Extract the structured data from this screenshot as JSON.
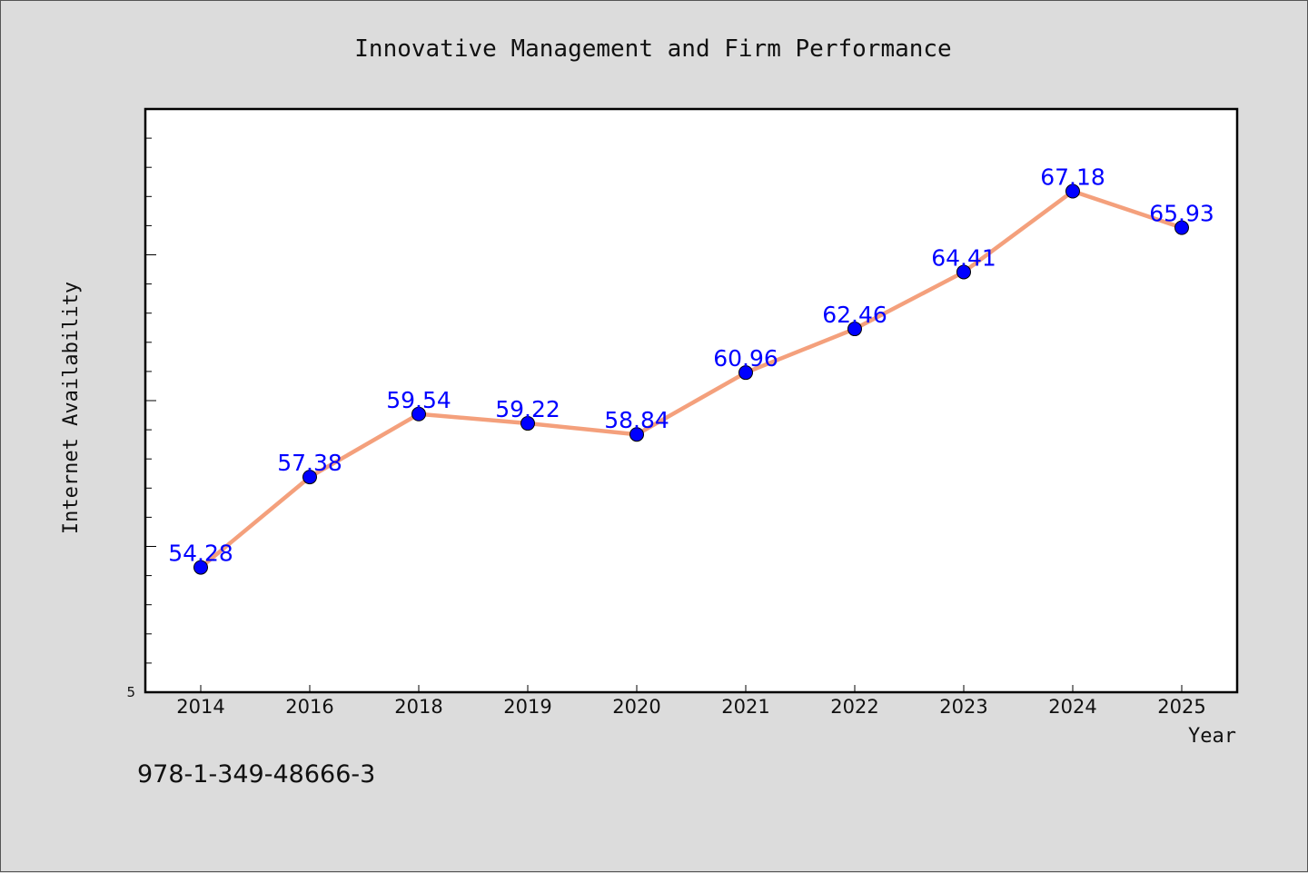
{
  "chart_data": {
    "type": "line",
    "title": "Innovative Management and Firm Performance",
    "xlabel": "Year",
    "ylabel": "Internet Availability",
    "categories": [
      "2014",
      "2016",
      "2018",
      "2019",
      "2020",
      "2021",
      "2022",
      "2023",
      "2024",
      "2025"
    ],
    "series": [
      {
        "values": [
          54.28,
          57.38,
          59.54,
          59.22,
          58.84,
          60.96,
          62.46,
          64.41,
          67.18,
          65.93
        ],
        "line_color": "#f4a07c",
        "marker_color": "#0000ff"
      }
    ],
    "data_labels": [
      "54.28",
      "57.38",
      "59.54",
      "59.22",
      "58.84",
      "60.96",
      "62.46",
      "64.41",
      "67.18",
      "65.93"
    ],
    "ylim": [
      50,
      70
    ],
    "y_tick_labels": [
      "5"
    ],
    "grid": false,
    "plot_background": "#ffffff",
    "figure_background": "#dcdcdc"
  },
  "footer": {
    "isbn": "978-1-349-48666-3"
  }
}
